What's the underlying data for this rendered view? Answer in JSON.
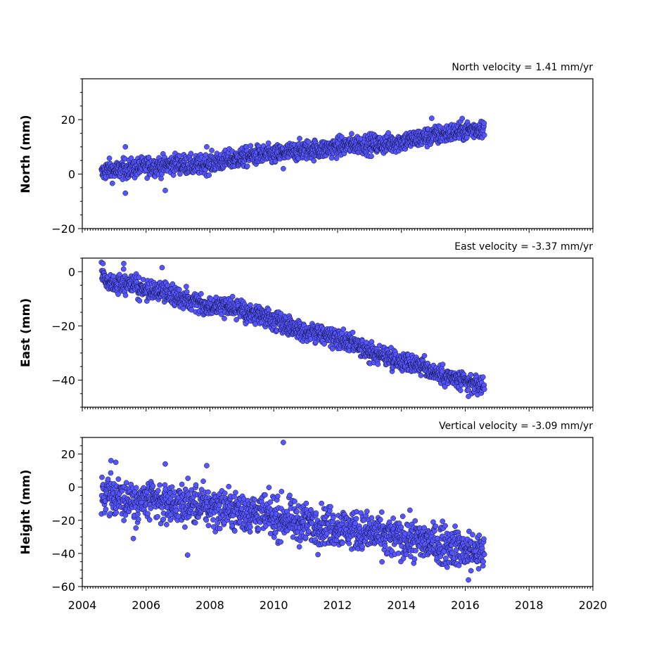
{
  "chart_data": [
    {
      "type": "scatter",
      "title": "North velocity = 1.41 mm/yr",
      "ylabel": "North (mm)",
      "xlim": [
        2004,
        2020
      ],
      "ylim": [
        -20,
        35
      ],
      "yticks": [
        -20,
        0,
        20
      ],
      "xticks": [
        2004,
        2006,
        2008,
        2010,
        2012,
        2014,
        2016,
        2018,
        2020
      ],
      "show_xticklabels": false,
      "point_color": "#5555ff",
      "series": [
        {
          "x": [
            2004.6,
            2004.8,
            2005.0,
            2005.3,
            2005.6,
            2006.0,
            2006.5,
            2007.0,
            2007.5,
            2008.0,
            2008.5,
            2009.0,
            2009.5,
            2010.0,
            2010.5,
            2011.0,
            2011.5,
            2012.0,
            2012.5,
            2013.0,
            2013.5,
            2014.0,
            2014.5,
            2015.0,
            2015.5,
            2016.0,
            2016.6
          ],
          "y": [
            0,
            2,
            1,
            2,
            2,
            3,
            3,
            4,
            3,
            4,
            5,
            6,
            7,
            7,
            8,
            9,
            9,
            10,
            11,
            11,
            11,
            12,
            13,
            14,
            15,
            16,
            17
          ]
        }
      ],
      "annotated_points": [
        {
          "x": 2005.35,
          "y": 10
        },
        {
          "x": 2005.35,
          "y": -7
        },
        {
          "x": 2006.6,
          "y": -6
        },
        {
          "x": 2007.9,
          "y": 10
        },
        {
          "x": 2010.3,
          "y": 2
        },
        {
          "x": 2014.95,
          "y": 20.5
        }
      ]
    },
    {
      "type": "scatter",
      "title": "East velocity = -3.37 mm/yr",
      "ylabel": "East (mm)",
      "xlim": [
        2004,
        2020
      ],
      "ylim": [
        -50,
        5
      ],
      "yticks": [
        -40,
        -20,
        0
      ],
      "xticks": [
        2004,
        2006,
        2008,
        2010,
        2012,
        2014,
        2016,
        2018,
        2020
      ],
      "show_xticklabels": false,
      "point_color": "#5555ff",
      "series": [
        {
          "x": [
            2004.6,
            2004.8,
            2005.0,
            2005.5,
            2006.0,
            2006.5,
            2007.0,
            2007.5,
            2008.0,
            2008.5,
            2009.0,
            2009.5,
            2010.0,
            2010.5,
            2011.0,
            2011.5,
            2012.0,
            2012.5,
            2013.0,
            2013.5,
            2014.0,
            2014.5,
            2015.0,
            2015.5,
            2016.0,
            2016.6
          ],
          "y": [
            0,
            -4,
            -5,
            -4,
            -7,
            -7,
            -10,
            -10,
            -13,
            -12,
            -15,
            -16,
            -18,
            -20,
            -22,
            -23,
            -25,
            -27,
            -30,
            -31,
            -33,
            -34,
            -37,
            -39,
            -41,
            -42
          ]
        }
      ],
      "annotated_points": [
        {
          "x": 2004.65,
          "y": 3
        },
        {
          "x": 2005.3,
          "y": 3
        },
        {
          "x": 2006.5,
          "y": 1.5
        },
        {
          "x": 2016.1,
          "y": -46
        }
      ]
    },
    {
      "type": "scatter",
      "title": "Vertical velocity = -3.09 mm/yr",
      "ylabel": "Height (mm)",
      "xlim": [
        2004,
        2020
      ],
      "ylim": [
        -60,
        30
      ],
      "yticks": [
        -60,
        -40,
        -20,
        0,
        20
      ],
      "xticks": [
        2004,
        2006,
        2008,
        2010,
        2012,
        2014,
        2016,
        2018,
        2020
      ],
      "show_xticklabels": true,
      "point_color": "#5555ff",
      "series": [
        {
          "x": [
            2004.6,
            2005.0,
            2005.5,
            2006.0,
            2006.5,
            2007.0,
            2007.5,
            2008.0,
            2008.5,
            2009.0,
            2009.5,
            2010.0,
            2010.5,
            2011.0,
            2011.5,
            2012.0,
            2012.5,
            2013.0,
            2013.5,
            2014.0,
            2014.5,
            2015.0,
            2015.5,
            2016.0,
            2016.6
          ],
          "y": [
            -4,
            -6,
            -7,
            -8,
            -10,
            -10,
            -11,
            -12,
            -13,
            -15,
            -16,
            -18,
            -20,
            -22,
            -23,
            -24,
            -26,
            -28,
            -30,
            -31,
            -32,
            -34,
            -35,
            -38,
            -40
          ]
        }
      ],
      "annotated_points": [
        {
          "x": 2010.3,
          "y": 27
        },
        {
          "x": 2004.9,
          "y": 16
        },
        {
          "x": 2005.05,
          "y": 15
        },
        {
          "x": 2006.6,
          "y": 14
        },
        {
          "x": 2007.9,
          "y": 13
        },
        {
          "x": 2007.3,
          "y": -41
        },
        {
          "x": 2005.6,
          "y": -31
        },
        {
          "x": 2016.1,
          "y": -56
        }
      ]
    }
  ]
}
